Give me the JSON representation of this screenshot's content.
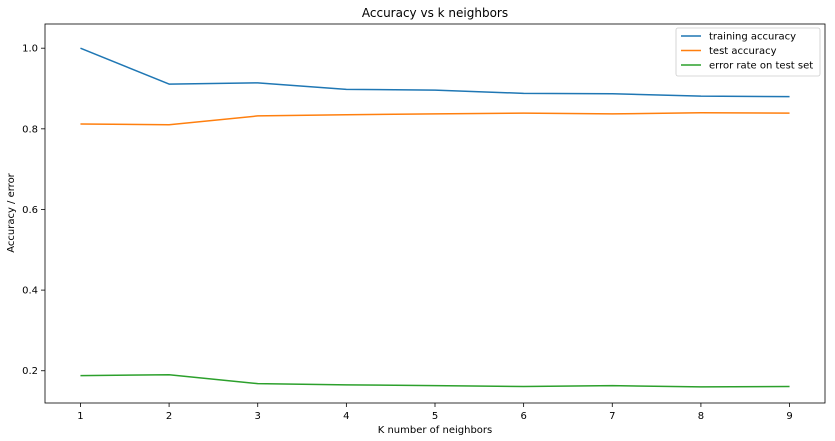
{
  "chart_data": {
    "type": "line",
    "title": "Accuracy vs k neighbors",
    "xlabel": "K number of neighbors",
    "ylabel": "Accuracy / error",
    "x": [
      1,
      2,
      3,
      4,
      5,
      6,
      7,
      8,
      9
    ],
    "x_ticks": [
      "1",
      "2",
      "3",
      "4",
      "5",
      "6",
      "7",
      "8",
      "9"
    ],
    "y_ticks": [
      "0.2",
      "0.4",
      "0.6",
      "0.8",
      "1.0"
    ],
    "xlim": [
      0.6,
      9.4
    ],
    "ylim": [
      0.12,
      1.06
    ],
    "grid": false,
    "legend_position": "top-right",
    "series": [
      {
        "name": "training accuracy",
        "color": "#1f77b4",
        "values": [
          1.0,
          0.911,
          0.914,
          0.898,
          0.896,
          0.888,
          0.887,
          0.881,
          0.88
        ]
      },
      {
        "name": "test accuracy",
        "color": "#ff7f0e",
        "values": [
          0.812,
          0.81,
          0.832,
          0.835,
          0.837,
          0.839,
          0.837,
          0.84,
          0.839
        ]
      },
      {
        "name": "error rate on test set",
        "color": "#2ca02c",
        "values": [
          0.188,
          0.19,
          0.168,
          0.165,
          0.163,
          0.161,
          0.163,
          0.16,
          0.161
        ]
      }
    ]
  }
}
